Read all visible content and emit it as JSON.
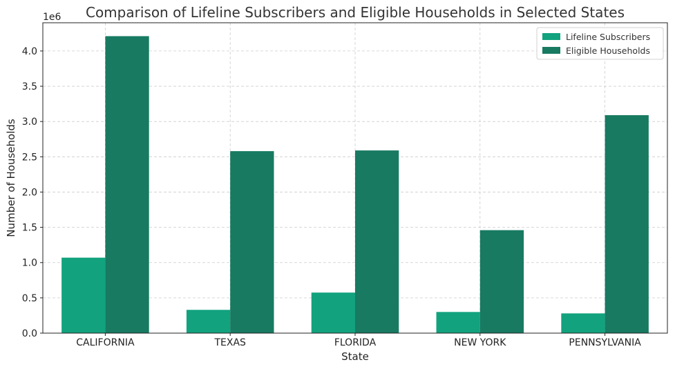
{
  "chart_data": {
    "type": "bar",
    "title": "Comparison of Lifeline Subscribers and Eligible Households in Selected States",
    "xlabel": "State",
    "ylabel": "Number of Households",
    "y_offset_label": "1e6",
    "categories": [
      "CALIFORNIA",
      "TEXAS",
      "FLORIDA",
      "NEW YORK",
      "PENNSYLVANIA"
    ],
    "series": [
      {
        "name": "Lifeline Subscribers",
        "color": "#12a27e",
        "values": [
          1070000,
          330000,
          575000,
          300000,
          280000
        ]
      },
      {
        "name": "Eligible Households",
        "color": "#177a61",
        "values": [
          4210000,
          2580000,
          2590000,
          1460000,
          3090000
        ]
      }
    ],
    "ylim": [
      0,
      4400000
    ],
    "yticks": [
      0,
      500000,
      1000000,
      1500000,
      2000000,
      2500000,
      3000000,
      3500000,
      4000000
    ],
    "ytick_labels": [
      "0.0",
      "0.5",
      "1.0",
      "1.5",
      "2.0",
      "2.5",
      "3.0",
      "3.5",
      "4.0"
    ],
    "grid": true,
    "legend_position": "top-right"
  }
}
